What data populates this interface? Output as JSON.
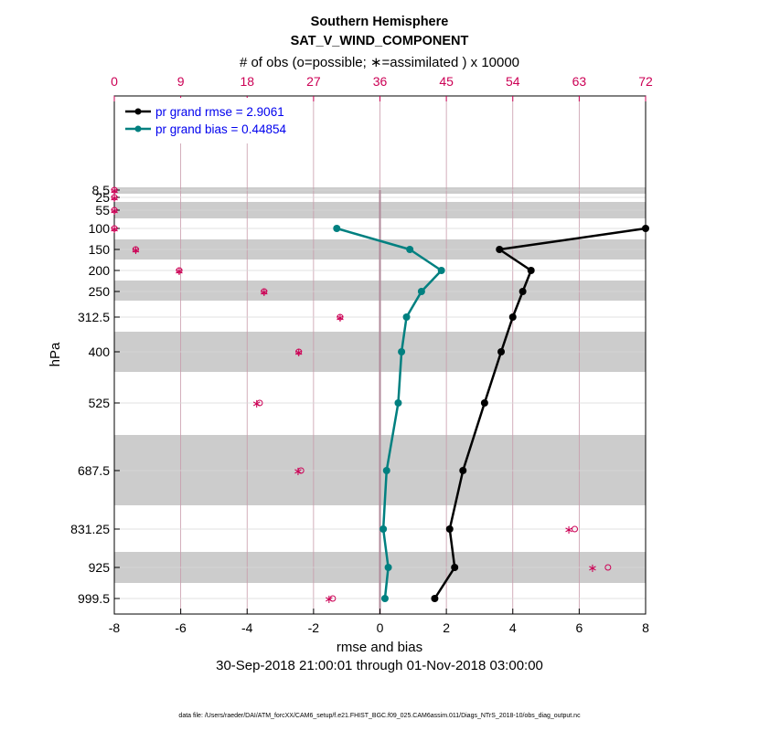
{
  "colors": {
    "rmse": "#000000",
    "bias": "#008080",
    "obs": "#cc0055",
    "band": "#cccccc",
    "legend_text": "#0000ee",
    "zero_line": "#b08a9a",
    "vgrid": "#c89aaa"
  },
  "chart_data": {
    "type": "line",
    "title": "Southern Hemisphere",
    "subtitle": "SAT_V_WIND_COMPONENT",
    "top_axis_label": "# of obs (o=possible; ∗=assimilated ) x 10000",
    "xlabel": "rmse and bias",
    "ylabel": "hPa",
    "date_range": "30-Sep-2018 21:00:01 through 01-Nov-2018 03:00:00",
    "footer": "data file: /Users/raeder/DAI/ATM_forcXX/CAM6_setup/f.e21.FHIST_BGC.f09_025.CAM6assim.011/Diags_NTrS_2018-10/obs_diag_output.nc",
    "xlim": [
      -8,
      8
    ],
    "x_ticks": [
      -8,
      -6,
      -4,
      -2,
      0,
      2,
      4,
      6,
      8
    ],
    "x_tick_labels": [
      "-8",
      "-6",
      "-4",
      "-2",
      "0",
      "2",
      "4",
      "6",
      "8"
    ],
    "top_lim": [
      0,
      72
    ],
    "top_ticks": [
      0,
      9,
      18,
      27,
      36,
      45,
      54,
      63,
      72
    ],
    "top_tick_labels": [
      "0",
      "9",
      "18",
      "27",
      "36",
      "45",
      "54",
      "63",
      "72"
    ],
    "levels": [
      8.5,
      25,
      55,
      100,
      150,
      200,
      250,
      312.5,
      400,
      525,
      687.5,
      831.25,
      925,
      999.5
    ],
    "level_labels": [
      "8.5",
      "25",
      "55",
      "100",
      "150",
      "200",
      "250",
      "312.5",
      "400",
      "525",
      "687.5",
      "831.25",
      "925",
      "999.5"
    ],
    "band_levels": [
      8.5,
      55,
      150,
      250,
      400,
      687.5,
      925
    ],
    "series": [
      {
        "name": "pr grand rmse = 2.9061",
        "key": "rmse",
        "levels": [
          100,
          150,
          200,
          250,
          312.5,
          400,
          525,
          687.5,
          831.25,
          925,
          999.5
        ],
        "values": [
          8.0,
          3.6,
          4.55,
          4.3,
          4.0,
          3.65,
          3.15,
          2.5,
          2.1,
          2.25,
          1.65
        ]
      },
      {
        "name": "pr grand bias = 0.44854",
        "key": "bias",
        "levels": [
          100,
          150,
          200,
          250,
          312.5,
          400,
          525,
          687.5,
          831.25,
          925,
          999.5
        ],
        "values": [
          -1.3,
          0.9,
          1.85,
          1.25,
          0.8,
          0.65,
          0.55,
          0.2,
          0.1,
          0.25,
          0.15
        ]
      }
    ],
    "obs_counts": {
      "levels": [
        8.5,
        25,
        55,
        100,
        150,
        200,
        250,
        312.5,
        400,
        525,
        687.5,
        831.25,
        925,
        999.5
      ],
      "possible": [
        0.01,
        0.01,
        0.01,
        0.01,
        2.9,
        8.8,
        20.3,
        30.6,
        25.0,
        19.7,
        25.3,
        62.4,
        66.9,
        29.6
      ],
      "assimilated": [
        0.01,
        0.01,
        0.01,
        0.01,
        2.9,
        8.8,
        20.3,
        30.6,
        25.0,
        19.3,
        24.9,
        61.6,
        64.8,
        29.1
      ]
    }
  }
}
